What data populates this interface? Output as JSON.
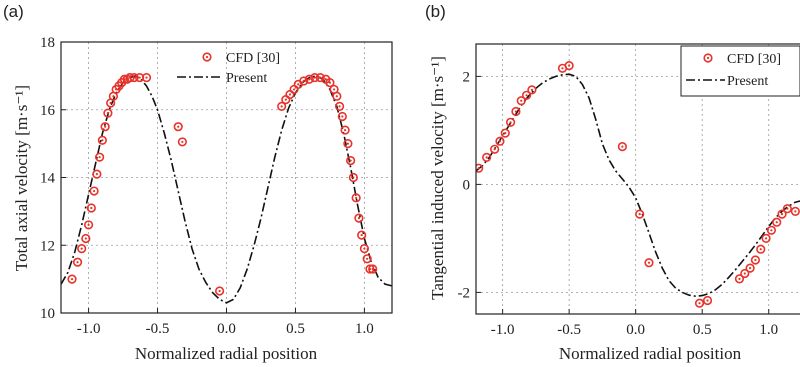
{
  "chart_data": [
    {
      "type": "scatter",
      "panel_label": "(a)",
      "xlabel": "Normalized radial position",
      "ylabel": "Total axial velocity [m·s⁻¹]",
      "xlim": [
        -1.2,
        1.2
      ],
      "ylim": [
        10,
        18
      ],
      "xticks": [
        -1.0,
        -0.5,
        0.0,
        0.5,
        1.0
      ],
      "xtick_labels": [
        "-1.0",
        "-0.5",
        "0.0",
        "0.5",
        "1.0"
      ],
      "yticks": [
        10,
        12,
        14,
        16,
        18
      ],
      "ytick_labels": [
        "10",
        "12",
        "14",
        "16",
        "18"
      ],
      "grid": true,
      "legend_position": "top-right",
      "series": [
        {
          "name": "CFD [30]",
          "style": "markers",
          "color": "#e8322a",
          "x": [
            -1.12,
            -1.08,
            -1.05,
            -1.02,
            -1.0,
            -0.98,
            -0.96,
            -0.94,
            -0.92,
            -0.9,
            -0.88,
            -0.86,
            -0.84,
            -0.82,
            -0.8,
            -0.78,
            -0.76,
            -0.74,
            -0.72,
            -0.7,
            -0.67,
            -0.63,
            -0.58,
            -0.35,
            -0.32,
            -0.05,
            0.4,
            0.43,
            0.46,
            0.49,
            0.52,
            0.56,
            0.6,
            0.64,
            0.68,
            0.72,
            0.75,
            0.78,
            0.8,
            0.82,
            0.84,
            0.86,
            0.88,
            0.9,
            0.92,
            0.94,
            0.96,
            0.98,
            1.0,
            1.02,
            1.04,
            1.06
          ],
          "y": [
            11.0,
            11.5,
            11.9,
            12.2,
            12.6,
            13.1,
            13.6,
            14.1,
            14.6,
            15.1,
            15.5,
            15.9,
            16.2,
            16.4,
            16.6,
            16.7,
            16.8,
            16.9,
            16.9,
            16.95,
            16.95,
            16.95,
            16.95,
            15.5,
            15.05,
            10.65,
            16.1,
            16.3,
            16.45,
            16.6,
            16.75,
            16.85,
            16.9,
            16.95,
            16.95,
            16.9,
            16.8,
            16.6,
            16.4,
            16.1,
            15.8,
            15.4,
            15.0,
            14.5,
            14.0,
            13.4,
            12.8,
            12.3,
            11.9,
            11.6,
            11.3,
            11.3
          ]
        },
        {
          "name": "Present",
          "style": "dash-dot-line",
          "color": "#111111",
          "x": [
            -1.2,
            -1.15,
            -1.1,
            -1.05,
            -1.0,
            -0.95,
            -0.9,
            -0.85,
            -0.8,
            -0.75,
            -0.7,
            -0.66,
            -0.62,
            -0.58,
            -0.54,
            -0.5,
            -0.45,
            -0.4,
            -0.35,
            -0.3,
            -0.25,
            -0.2,
            -0.15,
            -0.1,
            -0.05,
            0.0,
            0.05,
            0.1,
            0.15,
            0.2,
            0.25,
            0.3,
            0.35,
            0.4,
            0.45,
            0.5,
            0.55,
            0.6,
            0.65,
            0.7,
            0.75,
            0.8,
            0.85,
            0.9,
            0.95,
            1.0,
            1.05,
            1.1,
            1.15,
            1.2
          ],
          "y": [
            10.85,
            11.2,
            11.8,
            12.6,
            13.5,
            14.4,
            15.3,
            16.0,
            16.5,
            16.8,
            16.95,
            17.0,
            16.9,
            16.7,
            16.4,
            16.0,
            15.3,
            14.5,
            13.6,
            12.7,
            11.9,
            11.3,
            10.9,
            10.6,
            10.4,
            10.3,
            10.4,
            10.75,
            11.3,
            12.0,
            12.8,
            13.7,
            14.6,
            15.4,
            16.05,
            16.5,
            16.8,
            16.95,
            17.0,
            16.9,
            16.6,
            16.1,
            15.3,
            14.3,
            13.2,
            12.2,
            11.5,
            11.05,
            10.85,
            10.8
          ]
        }
      ]
    },
    {
      "type": "scatter",
      "panel_label": "(b)",
      "xlabel": "Normalized radial position",
      "ylabel": "Tangential induced velocity [m·s⁻¹]",
      "xlim": [
        -1.2,
        1.25
      ],
      "ylim": [
        -2.4,
        2.6
      ],
      "xticks": [
        -1.0,
        -0.5,
        0.0,
        0.5,
        1.0
      ],
      "xtick_labels": [
        "-1.0",
        "-0.5",
        "0.0",
        "0.5",
        "1.0"
      ],
      "yticks": [
        -2,
        0,
        2
      ],
      "ytick_labels": [
        "-2",
        "0",
        "2"
      ],
      "grid": true,
      "legend_position": "top-right",
      "series": [
        {
          "name": "CFD [30]",
          "style": "markers",
          "color": "#e8322a",
          "x": [
            -1.18,
            -1.12,
            -1.06,
            -1.02,
            -0.98,
            -0.94,
            -0.9,
            -0.86,
            -0.82,
            -0.78,
            -0.55,
            -0.5,
            -0.1,
            0.03,
            0.1,
            0.48,
            0.54,
            0.78,
            0.82,
            0.86,
            0.9,
            0.94,
            0.98,
            1.02,
            1.06,
            1.1,
            1.14,
            1.2
          ],
          "y": [
            0.3,
            0.5,
            0.65,
            0.8,
            0.95,
            1.15,
            1.35,
            1.55,
            1.65,
            1.75,
            2.15,
            2.2,
            0.7,
            -0.55,
            -1.45,
            -2.2,
            -2.15,
            -1.75,
            -1.65,
            -1.55,
            -1.4,
            -1.2,
            -1.0,
            -0.85,
            -0.7,
            -0.55,
            -0.45,
            -0.5
          ]
        },
        {
          "name": "Present",
          "style": "dash-dot-line",
          "color": "#111111",
          "x": [
            -1.2,
            -1.15,
            -1.1,
            -1.05,
            -1.0,
            -0.95,
            -0.9,
            -0.85,
            -0.8,
            -0.75,
            -0.7,
            -0.65,
            -0.6,
            -0.55,
            -0.5,
            -0.45,
            -0.4,
            -0.35,
            -0.3,
            -0.25,
            -0.2,
            -0.15,
            -0.1,
            -0.05,
            0.0,
            0.05,
            0.1,
            0.15,
            0.2,
            0.25,
            0.3,
            0.35,
            0.4,
            0.45,
            0.5,
            0.55,
            0.6,
            0.65,
            0.7,
            0.75,
            0.8,
            0.85,
            0.9,
            0.95,
            1.0,
            1.05,
            1.1,
            1.15,
            1.2,
            1.25
          ],
          "y": [
            0.25,
            0.35,
            0.5,
            0.7,
            0.9,
            1.1,
            1.3,
            1.5,
            1.65,
            1.78,
            1.88,
            1.95,
            2.0,
            2.03,
            2.04,
            2.0,
            1.85,
            1.6,
            1.2,
            0.75,
            0.45,
            0.25,
            0.1,
            -0.05,
            -0.25,
            -0.55,
            -0.9,
            -1.25,
            -1.55,
            -1.78,
            -1.92,
            -2.0,
            -2.05,
            -2.07,
            -2.06,
            -2.02,
            -1.95,
            -1.85,
            -1.72,
            -1.58,
            -1.43,
            -1.28,
            -1.12,
            -0.95,
            -0.78,
            -0.62,
            -0.5,
            -0.4,
            -0.33,
            -0.3
          ]
        }
      ]
    }
  ]
}
